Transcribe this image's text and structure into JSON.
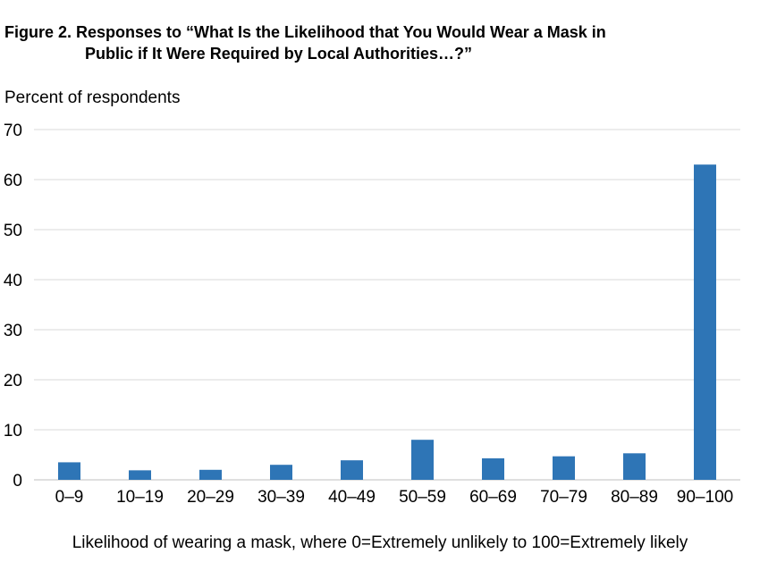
{
  "figure": {
    "title_line1": "Figure 2. Responses to “What Is the Likelihood that You Would Wear a Mask in",
    "title_line2": "Public if It Were Required by Local Authorities…?”"
  },
  "chart_data": {
    "type": "bar",
    "title": "Figure 2. Responses to “What Is the Likelihood that You Would Wear a Mask in Public if It Were Required by Local Authorities…?”",
    "ylabel": "Percent of respondents",
    "xlabel": "Likelihood of wearing a mask, where 0=Extremely unlikely to 100=Extremely likely",
    "categories": [
      "0–9",
      "10–19",
      "20–29",
      "30–39",
      "40–49",
      "50–59",
      "60–69",
      "70–79",
      "80–89",
      "90–100"
    ],
    "values": [
      3.5,
      1.9,
      2.0,
      3.0,
      3.9,
      8.0,
      4.3,
      4.7,
      5.3,
      63.0
    ],
    "ylim": [
      0,
      70
    ],
    "yticks": [
      0,
      10,
      20,
      30,
      40,
      50,
      60,
      70
    ],
    "grid": true,
    "bar_color": "#2e75b6",
    "grid_color": "#d9d9d9"
  }
}
